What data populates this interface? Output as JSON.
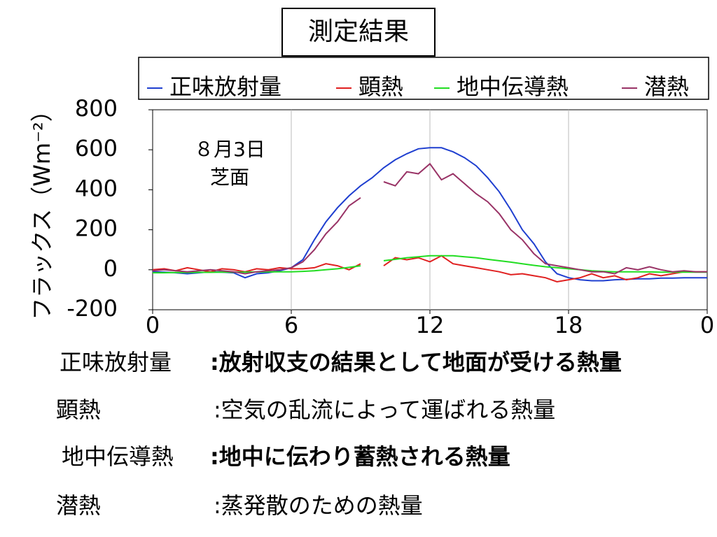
{
  "chart_data": {
    "type": "line",
    "title": "測定結果",
    "ylabel": "フラックス（Wm⁻²）",
    "annotation": [
      "８月3日",
      "芝面"
    ],
    "x": [
      0,
      0.5,
      1,
      1.5,
      2,
      2.5,
      3,
      3.5,
      4,
      4.5,
      5,
      5.5,
      6,
      6.5,
      7,
      7.5,
      8,
      8.5,
      9,
      9.5,
      10,
      10.5,
      11,
      11.5,
      12,
      12.5,
      13,
      13.5,
      14,
      14.5,
      15,
      15.5,
      16,
      16.5,
      17,
      17.5,
      18,
      18.5,
      19,
      19.5,
      20,
      20.5,
      21,
      21.5,
      22,
      22.5,
      23,
      23.5,
      24
    ],
    "xlim": [
      0,
      24
    ],
    "xticks": [
      0,
      6,
      12,
      18,
      {
        "value": 24,
        "label": "0"
      }
    ],
    "ylim": [
      -200,
      800
    ],
    "yticks": [
      -200,
      0,
      200,
      400,
      600,
      800
    ],
    "grid": "x",
    "legend": "top",
    "series": [
      {
        "name": "正味放射量",
        "color": "#1f3fd0",
        "values": [
          -10,
          -12,
          -15,
          -20,
          -15,
          -10,
          -12,
          -15,
          -40,
          -20,
          -15,
          -5,
          10,
          50,
          150,
          240,
          310,
          370,
          420,
          460,
          510,
          550,
          580,
          605,
          610,
          610,
          590,
          560,
          520,
          460,
          390,
          300,
          200,
          130,
          40,
          -20,
          -40,
          -50,
          -55,
          -55,
          -50,
          -48,
          -45,
          -45,
          -42,
          -42,
          -40,
          -40,
          -40
        ]
      },
      {
        "name": "顕熱",
        "color": "#e02020",
        "values": [
          0,
          5,
          -5,
          10,
          0,
          -10,
          5,
          0,
          -10,
          5,
          0,
          10,
          5,
          5,
          10,
          30,
          20,
          0,
          30,
          null,
          20,
          60,
          50,
          60,
          40,
          70,
          30,
          20,
          10,
          0,
          -10,
          -25,
          -20,
          -30,
          -40,
          -60,
          -50,
          -40,
          -20,
          -40,
          -30,
          -50,
          -40,
          -20,
          -30,
          -20,
          -10,
          -10,
          -10
        ]
      },
      {
        "name": "地中伝導熱",
        "color": "#22dd22",
        "values": [
          -15,
          -15,
          -14,
          -14,
          -13,
          -13,
          -12,
          -12,
          -12,
          -11,
          -11,
          -10,
          -10,
          -8,
          -5,
          0,
          5,
          12,
          20,
          null,
          45,
          52,
          60,
          65,
          70,
          70,
          70,
          65,
          60,
          52,
          45,
          38,
          30,
          22,
          15,
          10,
          5,
          0,
          -5,
          -8,
          -10,
          -10,
          -10,
          -11,
          -12,
          -12,
          -12,
          -12,
          -12
        ]
      },
      {
        "name": "潜熱",
        "color": "#993366",
        "values": [
          -5,
          0,
          -5,
          -10,
          -5,
          0,
          -5,
          -10,
          -20,
          -10,
          -5,
          0,
          10,
          40,
          100,
          180,
          240,
          320,
          360,
          null,
          440,
          420,
          490,
          480,
          530,
          450,
          480,
          430,
          380,
          340,
          280,
          200,
          150,
          80,
          30,
          20,
          10,
          0,
          -10,
          -10,
          -20,
          10,
          0,
          15,
          0,
          -10,
          -5,
          -10,
          -10
        ]
      }
    ]
  },
  "definitions": [
    {
      "term": "正味放射量",
      "definition": ":放射収支の結果として地面が受ける熱量",
      "bold": true
    },
    {
      "term": "顕熱",
      "definition": ":空気の乱流によって運ばれる熱量",
      "bold": false
    },
    {
      "term": "地中伝導熱",
      "definition": ":地中に伝わり蓄熱される熱量",
      "bold": true
    },
    {
      "term": "潜熱",
      "definition": ":蒸発散のための熱量",
      "bold": false
    }
  ]
}
